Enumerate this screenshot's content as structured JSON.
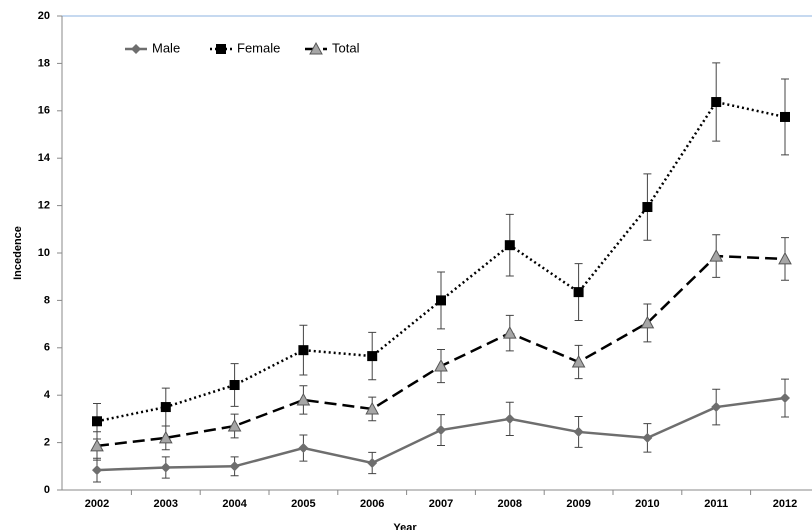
{
  "chart_data": {
    "type": "line",
    "x_label": "Year",
    "y_label": "Incedence",
    "categories": [
      "2002",
      "2003",
      "2004",
      "2005",
      "2006",
      "2007",
      "2008",
      "2009",
      "2010",
      "2011",
      "2012"
    ],
    "ylim": [
      0,
      20
    ],
    "yticks": [
      0,
      2,
      4,
      6,
      8,
      10,
      12,
      14,
      16,
      18,
      20
    ],
    "legend": "upper left",
    "series": [
      {
        "name": "Male",
        "color": "#6e6e6e",
        "dash": "solid",
        "marker": "diamond",
        "values": [
          0.84,
          0.95,
          1.0,
          1.77,
          1.14,
          2.53,
          3.0,
          2.45,
          2.2,
          3.5,
          3.88
        ],
        "errors": [
          0.5,
          0.45,
          0.4,
          0.55,
          0.45,
          0.65,
          0.7,
          0.65,
          0.6,
          0.75,
          0.8
        ]
      },
      {
        "name": "Female",
        "color": "#000000",
        "dash": "dotted",
        "marker": "square",
        "values": [
          2.9,
          3.5,
          4.43,
          5.9,
          5.65,
          8.0,
          10.33,
          8.35,
          11.94,
          16.37,
          15.74
        ],
        "errors": [
          0.75,
          0.8,
          0.9,
          1.05,
          1.0,
          1.2,
          1.3,
          1.2,
          1.4,
          1.65,
          1.6
        ]
      },
      {
        "name": "Total",
        "color": "#000000",
        "dash": "dashed",
        "marker": "triangle",
        "values": [
          1.86,
          2.2,
          2.7,
          3.8,
          3.42,
          5.23,
          6.62,
          5.4,
          7.05,
          9.87,
          9.75
        ],
        "errors": [
          0.6,
          0.5,
          0.5,
          0.6,
          0.5,
          0.7,
          0.75,
          0.7,
          0.8,
          0.9,
          0.9
        ]
      }
    ]
  }
}
